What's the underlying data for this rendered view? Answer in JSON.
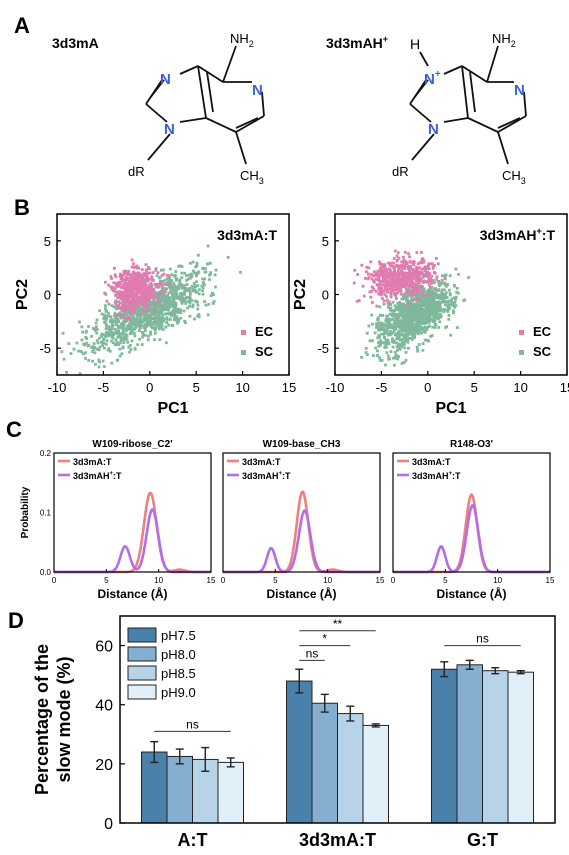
{
  "panelA": {
    "letter": "A",
    "left": {
      "name": "3d3mA",
      "nh2": "NH",
      "nh2_sub": "2",
      "n": "N",
      "dR": "dR",
      "ch3": "CH",
      "ch3_sub": "3"
    },
    "right": {
      "name": "3d3mAH",
      "name_sup": "+",
      "h": "H",
      "nplus": "N",
      "nplus_sup": "+",
      "nh2": "NH",
      "nh2_sub": "2",
      "n": "N",
      "dR": "dR",
      "ch3": "CH",
      "ch3_sub": "3"
    }
  },
  "panelB": {
    "letter": "B"
  },
  "panelC": {
    "letter": "C"
  },
  "panelD": {
    "letter": "D"
  },
  "chart_data": [
    {
      "type": "scatter",
      "panel": "B",
      "title": "3d3mA:T",
      "xlabel": "PC1",
      "ylabel": "PC2",
      "xlim": [
        -10,
        15
      ],
      "ylim": [
        -7.5,
        7.5
      ],
      "xticks": [
        -10,
        -5,
        0,
        5,
        10,
        15
      ],
      "yticks": [
        5,
        0,
        -5
      ],
      "legend": "bottom-right",
      "series": [
        {
          "name": "EC",
          "color": "#e07bb0",
          "cloud": {
            "cx": -1.5,
            "cy": 0.5,
            "sx": 1.8,
            "sy": 1.4,
            "rot": 20
          }
        },
        {
          "name": "SC",
          "color": "#7fb89a",
          "cloud": {
            "cx": 0.0,
            "cy": -1.5,
            "sx": 5.0,
            "sy": 1.6,
            "rot": 25
          }
        }
      ]
    },
    {
      "type": "scatter",
      "panel": "B",
      "title": "3d3mAH",
      "title_sup": "+",
      "title_suffix": ":T",
      "xlabel": "PC1",
      "ylabel": "PC2",
      "xlim": [
        -10,
        15
      ],
      "ylim": [
        -7.5,
        7.5
      ],
      "xticks": [
        -10,
        -5,
        0,
        5,
        10,
        15
      ],
      "yticks": [
        5,
        0,
        -5
      ],
      "legend": "bottom-right",
      "series": [
        {
          "name": "EC",
          "color": "#e07bb0",
          "cloud": {
            "cx": -3.0,
            "cy": 1.5,
            "sx": 2.6,
            "sy": 1.3,
            "rot": 10
          }
        },
        {
          "name": "SC",
          "color": "#7fb89a",
          "cloud": {
            "cx": -1.5,
            "cy": -2.0,
            "sx": 3.2,
            "sy": 1.6,
            "rot": 35
          }
        }
      ]
    },
    {
      "type": "line",
      "panel": "C",
      "title": "W109-ribose_C2'",
      "xlabel": "Distance (Å)",
      "ylabel": "Probability",
      "xlim": [
        0,
        15
      ],
      "ylim": [
        0,
        0.2
      ],
      "xticks": [
        0,
        5,
        10,
        15
      ],
      "yticks": [
        0.0,
        0.1,
        0.2
      ],
      "legend": "top-left",
      "series": [
        {
          "name": "3d3mA:T",
          "color": "#f07f7f",
          "peaks": [
            {
              "mu": 9.2,
              "sigma": 0.6,
              "amp": 0.133
            },
            {
              "mu": 12.0,
              "sigma": 0.5,
              "amp": 0.004
            }
          ]
        },
        {
          "name": "3d3mAH+:T",
          "label": "3d3mAH",
          "label_sup": "+",
          "label_suffix": ":T",
          "color": "#b26ee8",
          "peaks": [
            {
              "mu": 6.8,
              "sigma": 0.45,
              "amp": 0.043
            },
            {
              "mu": 9.4,
              "sigma": 0.55,
              "amp": 0.105
            }
          ]
        }
      ]
    },
    {
      "type": "line",
      "panel": "C",
      "title": "W109-base_CH3",
      "xlabel": "Distance (Å)",
      "xlim": [
        0,
        15
      ],
      "ylim": [
        0,
        0.2
      ],
      "xticks": [
        0,
        5,
        10,
        15
      ],
      "legend": "top-left",
      "series": [
        {
          "name": "3d3mA:T",
          "color": "#f07f7f",
          "peaks": [
            {
              "mu": 7.6,
              "sigma": 0.55,
              "amp": 0.135
            },
            {
              "mu": 10.5,
              "sigma": 0.5,
              "amp": 0.004
            }
          ]
        },
        {
          "name": "3d3mAH+:T",
          "label": "3d3mAH",
          "label_sup": "+",
          "label_suffix": ":T",
          "color": "#b26ee8",
          "peaks": [
            {
              "mu": 4.6,
              "sigma": 0.4,
              "amp": 0.04
            },
            {
              "mu": 7.8,
              "sigma": 0.55,
              "amp": 0.103
            }
          ]
        }
      ]
    },
    {
      "type": "line",
      "panel": "C",
      "title": "R148-O3'",
      "xlabel": "Distance (Å)",
      "xlim": [
        0,
        15
      ],
      "ylim": [
        0,
        0.2
      ],
      "xticks": [
        0,
        5,
        10,
        15
      ],
      "legend": "top-left",
      "series": [
        {
          "name": "3d3mA:T",
          "color": "#f07f7f",
          "peaks": [
            {
              "mu": 7.5,
              "sigma": 0.55,
              "amp": 0.13
            }
          ]
        },
        {
          "name": "3d3mAH+:T",
          "label": "3d3mAH",
          "label_sup": "+",
          "label_suffix": ":T",
          "color": "#b26ee8",
          "peaks": [
            {
              "mu": 4.6,
              "sigma": 0.4,
              "amp": 0.043
            },
            {
              "mu": 7.6,
              "sigma": 0.55,
              "amp": 0.112
            }
          ]
        }
      ]
    },
    {
      "type": "bar",
      "panel": "D",
      "ylabel_line1": "Percentage of the",
      "ylabel_line2": "slow mode (%)",
      "categories": [
        "A:T",
        "3d3mA:T",
        "G:T"
      ],
      "ylim": [
        0,
        70
      ],
      "yticks": [
        0,
        20,
        40,
        60
      ],
      "legend": "top-left",
      "series": [
        {
          "name": "pH7.5",
          "color": "#4a81ab",
          "values": [
            24.0,
            48.0,
            52.0
          ],
          "errors": [
            3.5,
            4.0,
            2.5
          ]
        },
        {
          "name": "pH8.0",
          "color": "#85afd0",
          "values": [
            22.5,
            40.5,
            53.5
          ],
          "errors": [
            2.5,
            3.0,
            1.5
          ]
        },
        {
          "name": "pH8.5",
          "color": "#b6d3e8",
          "values": [
            21.5,
            37.0,
            51.5
          ],
          "errors": [
            4.0,
            2.5,
            1.0
          ]
        },
        {
          "name": "pH9.0",
          "color": "#e1eff8",
          "values": [
            20.5,
            33.0,
            51.0
          ],
          "errors": [
            1.5,
            0.5,
            0.5
          ]
        }
      ],
      "significance": [
        {
          "category": 0,
          "from_series": 0,
          "to_series": 3,
          "y": 31,
          "label": "ns"
        },
        {
          "category": 1,
          "from_series": 0,
          "to_series": 1,
          "y": 55,
          "label": "ns"
        },
        {
          "category": 1,
          "from_series": 0,
          "to_series": 2,
          "y": 60,
          "label": "*"
        },
        {
          "category": 1,
          "from_series": 0,
          "to_series": 3,
          "y": 65,
          "label": "**"
        },
        {
          "category": 2,
          "from_series": 0,
          "to_series": 3,
          "y": 60,
          "label": "ns"
        }
      ]
    }
  ]
}
